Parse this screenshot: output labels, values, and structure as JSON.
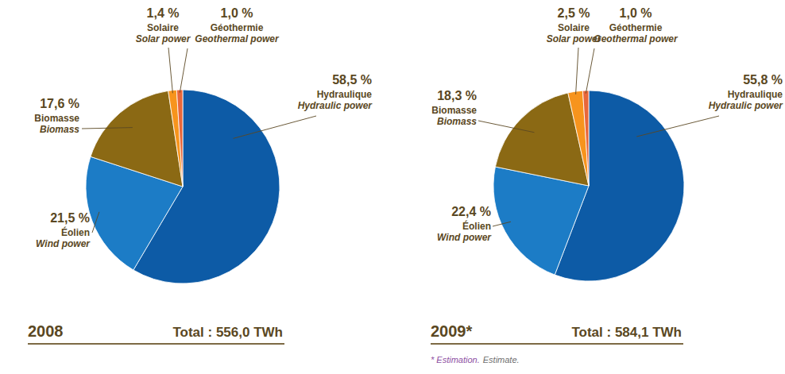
{
  "chart_data": [
    {
      "type": "pie",
      "title": "2008",
      "subtitle": "Total : 556,0 TWh",
      "categories": [
        "Hydraulique",
        "Éolien",
        "Biomasse",
        "Solaire",
        "Géothermie"
      ],
      "categories_en": [
        "Hydraulic power",
        "Wind power",
        "Biomass",
        "Solar power",
        "Geothermal power"
      ],
      "values": [
        58.5,
        21.5,
        17.6,
        1.4,
        1.0
      ],
      "value_labels": [
        "58,5 %",
        "21,5 %",
        "17,6 %",
        "1,4 %",
        "1,0 %"
      ],
      "colors": [
        "#0d5ba6",
        "#1c7cc6",
        "#8b6914",
        "#f7941d",
        "#e8673a"
      ],
      "data_labels": true
    },
    {
      "type": "pie",
      "title": "2009*",
      "subtitle": "Total : 584,1 TWh",
      "categories": [
        "Hydraulique",
        "Éolien",
        "Biomasse",
        "Solaire",
        "Géothermie"
      ],
      "categories_en": [
        "Hydraulic power",
        "Wind power",
        "Biomass",
        "Solar power",
        "Geothermal power"
      ],
      "values": [
        55.8,
        22.4,
        18.3,
        2.5,
        1.0
      ],
      "value_labels": [
        "55,8 %",
        "22,4 %",
        "18,3 %",
        "2,5 %",
        "1,0 %"
      ],
      "colors": [
        "#0d5ba6",
        "#1c7cc6",
        "#8b6914",
        "#f7941d",
        "#e8673a"
      ],
      "data_labels": true,
      "note": "* Estimation.",
      "note_en": "Estimate."
    }
  ]
}
